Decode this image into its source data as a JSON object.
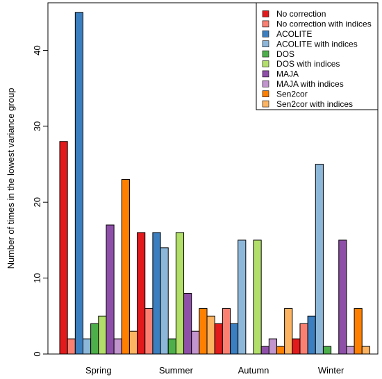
{
  "chart_data": {
    "type": "bar",
    "title": "",
    "xlabel": "",
    "ylabel": "Number of times in the lowest variance group",
    "categories": [
      "Spring",
      "Summer",
      "Autumn",
      "Winter"
    ],
    "ylim": [
      0,
      45
    ],
    "yticks": [
      0,
      10,
      20,
      30,
      40
    ],
    "grid": false,
    "legend_position": "top-right",
    "series": [
      {
        "name": "No correction",
        "color": "#E31A1C",
        "values": [
          28,
          16,
          4,
          2
        ]
      },
      {
        "name": "No correction with indices",
        "color": "#FB8072",
        "values": [
          2,
          6,
          6,
          4
        ]
      },
      {
        "name": "ACOLITE",
        "color": "#3B7FC0",
        "values": [
          45,
          16,
          4,
          5
        ]
      },
      {
        "name": "ACOLITE with indices",
        "color": "#8DB7D9",
        "values": [
          2,
          14,
          15,
          25
        ]
      },
      {
        "name": "DOS",
        "color": "#4DAF4A",
        "values": [
          4,
          2,
          0,
          1
        ]
      },
      {
        "name": "DOS with indices",
        "color": "#B2DF6A",
        "values": [
          5,
          16,
          15,
          0
        ]
      },
      {
        "name": "MAJA",
        "color": "#8E4FA8",
        "values": [
          17,
          8,
          1,
          15
        ]
      },
      {
        "name": "MAJA with indices",
        "color": "#C295CE",
        "values": [
          2,
          3,
          2,
          1
        ]
      },
      {
        "name": "Sen2cor",
        "color": "#FF7F00",
        "values": [
          23,
          6,
          1,
          6
        ]
      },
      {
        "name": "Sen2cor with indices",
        "color": "#FDB462",
        "values": [
          3,
          5,
          6,
          1
        ]
      }
    ]
  }
}
